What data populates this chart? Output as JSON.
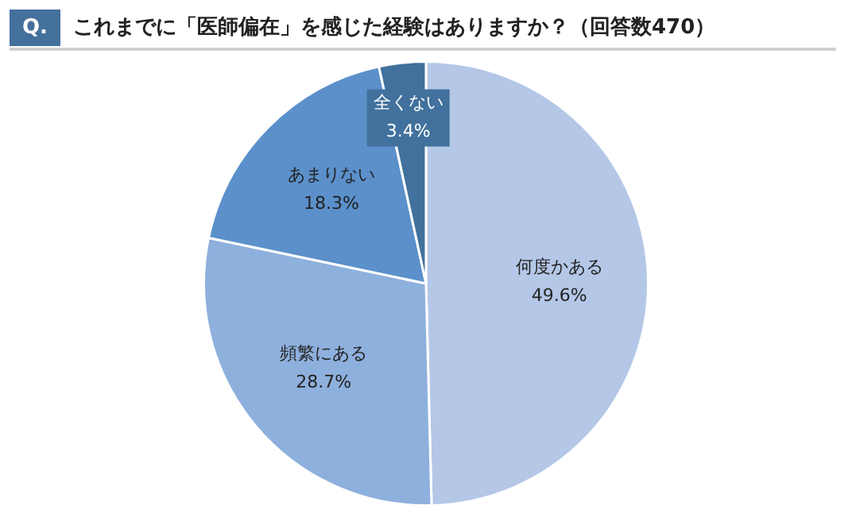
{
  "chart_data": {
    "type": "pie",
    "title": "これまでに「医師偏在」を感じた経験はありますか？（回答数470）",
    "annotations": [
      "Q."
    ],
    "categories": [
      "何度かある",
      "頻繁にある",
      "あまりない",
      "全くない"
    ],
    "values": [
      49.6,
      28.7,
      18.3,
      3.4
    ],
    "value_labels": [
      "49.6%",
      "28.7%",
      "18.3%",
      "3.4%"
    ],
    "colors": [
      "#b4c7e7",
      "#8eb0dd",
      "#5b90cb",
      "#41719c"
    ],
    "legend": false
  }
}
